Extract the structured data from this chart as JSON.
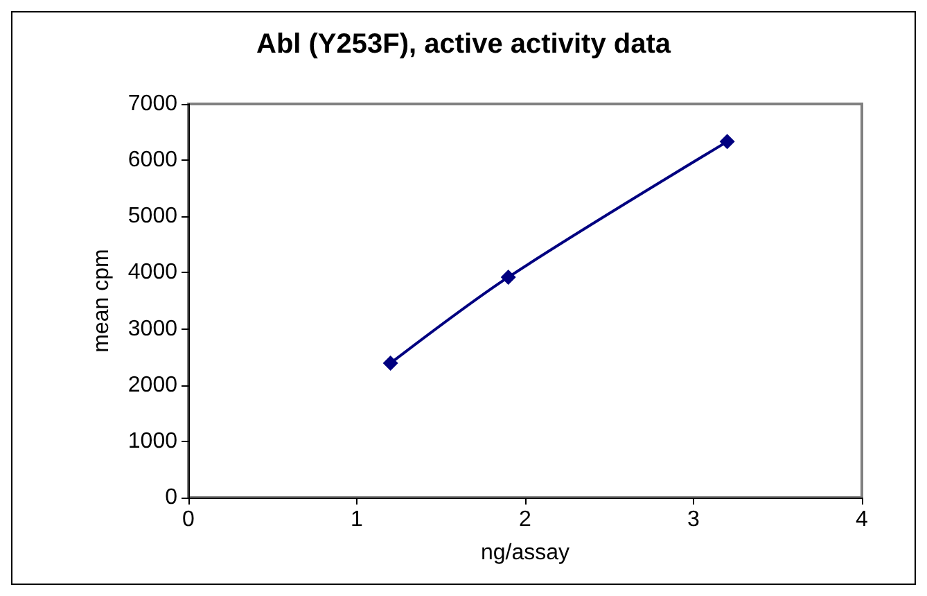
{
  "chart_data": {
    "type": "line",
    "title": "Abl (Y253F), active activity data",
    "xlabel": "ng/assay",
    "ylabel": "mean cpm",
    "x": [
      1.2,
      1.9,
      3.2
    ],
    "series": [
      {
        "color": "#000080",
        "values": [
          2390,
          3920,
          6330
        ]
      }
    ],
    "xlim": [
      0,
      4
    ],
    "xticks": [
      0,
      1,
      2,
      3,
      4
    ],
    "ylim": [
      0,
      7000
    ],
    "yticks": [
      0,
      1000,
      2000,
      3000,
      4000,
      5000,
      6000,
      7000
    ],
    "grid": false,
    "marker": "diamond",
    "line_style": "solid"
  }
}
